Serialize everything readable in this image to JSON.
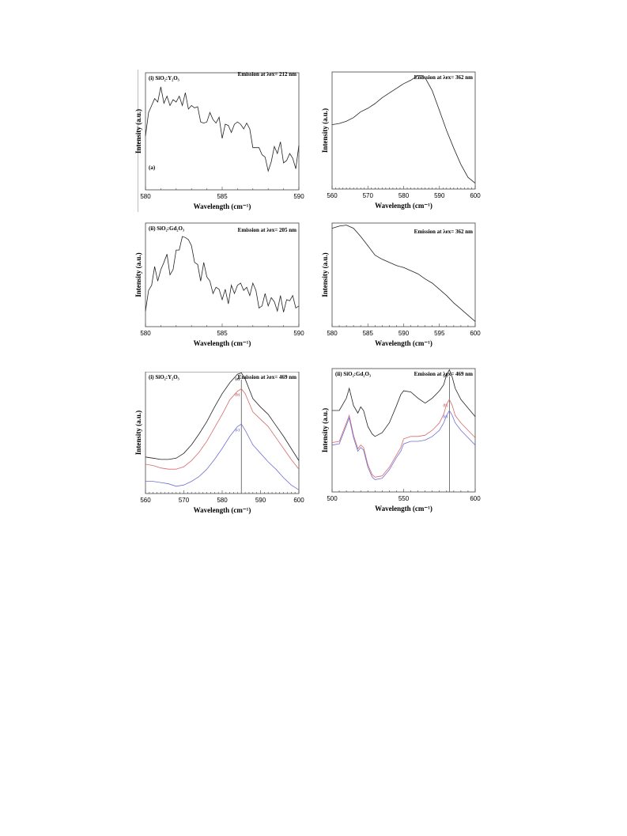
{
  "colors": {
    "black": "#222222",
    "red": "#d46a6a",
    "blue": "#6f6fd6",
    "marker": "#555555"
  },
  "chart_data": [
    {
      "type": "line",
      "panel_label": "(i) SiO₂:Y₂O₃",
      "emission_label": "Emission at λex= 212 nm",
      "corner_label": "(a)",
      "xlabel": "Wavelength (cm⁻¹)",
      "ylabel": "Intensity (a.u.)",
      "xlim": [
        580,
        590
      ],
      "ylim": [
        0,
        1
      ],
      "xticks": [
        580,
        585,
        590
      ],
      "grid": false,
      "series": [
        {
          "color": "black",
          "x": [
            580,
            580.2,
            580.4,
            580.6,
            580.8,
            581.0,
            581.2,
            581.4,
            581.6,
            581.8,
            582.0,
            582.2,
            582.4,
            582.6,
            582.8,
            583.0,
            583.2,
            583.4,
            583.6,
            583.8,
            584.0,
            584.2,
            584.4,
            584.6,
            584.8,
            585.0,
            585.2,
            585.4,
            585.6,
            585.8,
            586.0,
            586.2,
            586.4,
            586.6,
            586.8,
            587.0,
            587.2,
            587.4,
            587.6,
            587.8,
            588.0,
            588.2,
            588.4,
            588.6,
            588.8,
            589.0,
            589.2,
            589.4,
            589.6,
            589.8,
            590.0
          ],
          "y": [
            0.46,
            0.66,
            0.72,
            0.78,
            0.75,
            0.88,
            0.74,
            0.8,
            0.72,
            0.77,
            0.75,
            0.8,
            0.72,
            0.83,
            0.69,
            0.72,
            0.7,
            0.71,
            0.58,
            0.57,
            0.58,
            0.66,
            0.6,
            0.57,
            0.62,
            0.44,
            0.56,
            0.55,
            0.49,
            0.56,
            0.58,
            0.56,
            0.52,
            0.57,
            0.52,
            0.36,
            0.36,
            0.36,
            0.3,
            0.28,
            0.16,
            0.24,
            0.37,
            0.31,
            0.41,
            0.23,
            0.25,
            0.31,
            0.27,
            0.18,
            0.38
          ]
        }
      ]
    },
    {
      "type": "line",
      "emission_label": "Emission at λex= 362 nm",
      "xlabel": "Wavelength (cm⁻¹)",
      "ylabel": "Intensity (a.u.)",
      "xlim": [
        560,
        600
      ],
      "ylim": [
        0,
        1
      ],
      "xticks": [
        560,
        570,
        580,
        590,
        600
      ],
      "grid": false,
      "series": [
        {
          "color": "black",
          "x": [
            560,
            562,
            564,
            566,
            568,
            570,
            572,
            574,
            576,
            578,
            580,
            582,
            584,
            585,
            586,
            588,
            590,
            592,
            594,
            596,
            598,
            600
          ],
          "y": [
            0.55,
            0.56,
            0.58,
            0.61,
            0.66,
            0.69,
            0.73,
            0.78,
            0.82,
            0.86,
            0.9,
            0.93,
            0.97,
            0.97,
            0.95,
            0.84,
            0.67,
            0.5,
            0.35,
            0.21,
            0.1,
            0.05
          ]
        }
      ]
    },
    {
      "type": "line",
      "panel_label": "(ii) SiO₂:Gd₂O₃",
      "emission_label": "Emission at λex= 205 nm",
      "xlabel": "Wavelength (cm⁻¹)",
      "ylabel": "Intensity (a.u.)",
      "xlim": [
        580,
        590
      ],
      "ylim": [
        0,
        1
      ],
      "xticks": [
        580,
        585,
        590
      ],
      "grid": false,
      "series": [
        {
          "color": "black",
          "x": [
            580,
            580.2,
            580.4,
            580.6,
            580.8,
            581.0,
            581.2,
            581.4,
            581.6,
            581.8,
            582.0,
            582.2,
            582.4,
            582.6,
            582.8,
            583.0,
            583.2,
            583.4,
            583.6,
            583.8,
            584.0,
            584.2,
            584.4,
            584.6,
            584.8,
            585.0,
            585.2,
            585.4,
            585.6,
            585.8,
            586.0,
            586.2,
            586.4,
            586.6,
            586.8,
            587.0,
            587.2,
            587.4,
            587.6,
            587.8,
            588.0,
            588.2,
            588.4,
            588.6,
            588.8,
            589.0,
            589.2,
            589.4,
            589.6,
            589.8,
            590.0
          ],
          "y": [
            0.15,
            0.35,
            0.4,
            0.58,
            0.44,
            0.55,
            0.62,
            0.7,
            0.5,
            0.55,
            0.74,
            0.74,
            0.87,
            0.86,
            0.84,
            0.78,
            0.62,
            0.6,
            0.44,
            0.62,
            0.48,
            0.44,
            0.32,
            0.38,
            0.36,
            0.26,
            0.36,
            0.22,
            0.4,
            0.32,
            0.4,
            0.42,
            0.35,
            0.38,
            0.3,
            0.42,
            0.35,
            0.18,
            0.2,
            0.32,
            0.2,
            0.28,
            0.24,
            0.15,
            0.3,
            0.14,
            0.26,
            0.25,
            0.3,
            0.18,
            0.2
          ]
        }
      ]
    },
    {
      "type": "line",
      "emission_label": "Emission at λex= 362 nm",
      "xlabel": "Wavelength (cm⁻¹)",
      "ylabel": "Intensity (a.u.)",
      "xlim": [
        580,
        600
      ],
      "ylim": [
        0,
        1
      ],
      "xticks": [
        580,
        585,
        590,
        595,
        600
      ],
      "grid": false,
      "series": [
        {
          "color": "black",
          "x": [
            580,
            581,
            582,
            583,
            584,
            585,
            586,
            587,
            588,
            589,
            590,
            591,
            592,
            593,
            594,
            595,
            596,
            597,
            598,
            599,
            600
          ],
          "y": [
            0.95,
            0.97,
            0.98,
            0.95,
            0.87,
            0.78,
            0.69,
            0.65,
            0.62,
            0.59,
            0.57,
            0.54,
            0.51,
            0.46,
            0.42,
            0.36,
            0.3,
            0.23,
            0.17,
            0.11,
            0.05
          ]
        }
      ]
    },
    {
      "type": "line",
      "panel_label": "(i) SiO₂:Y₂O₃",
      "emission_label": "Emission at λex= 469 nm",
      "xlabel": "Wavelength (cm⁻¹)",
      "ylabel": "Intensity (a.u.)",
      "xlim": [
        560,
        600
      ],
      "ylim": [
        0,
        1
      ],
      "xticks": [
        560,
        570,
        580,
        590,
        600
      ],
      "vline": 585,
      "grid": false,
      "series": [
        {
          "name": "(a)",
          "color": "black",
          "x": [
            560,
            562,
            564,
            566,
            568,
            570,
            572,
            574,
            576,
            578,
            580,
            582,
            584,
            585,
            586,
            588,
            590,
            592,
            594,
            596,
            598,
            600
          ],
          "y": [
            0.3,
            0.29,
            0.28,
            0.28,
            0.29,
            0.33,
            0.4,
            0.49,
            0.59,
            0.71,
            0.82,
            0.91,
            0.98,
            0.99,
            0.94,
            0.78,
            0.71,
            0.65,
            0.56,
            0.47,
            0.37,
            0.27
          ]
        },
        {
          "name": "(b)",
          "color": "red",
          "x": [
            560,
            562,
            564,
            566,
            568,
            570,
            572,
            574,
            576,
            578,
            580,
            582,
            584,
            585,
            586,
            588,
            590,
            592,
            594,
            596,
            598,
            600
          ],
          "y": [
            0.24,
            0.23,
            0.21,
            0.2,
            0.2,
            0.22,
            0.27,
            0.34,
            0.43,
            0.54,
            0.65,
            0.77,
            0.84,
            0.86,
            0.82,
            0.67,
            0.61,
            0.55,
            0.46,
            0.37,
            0.28,
            0.2
          ]
        },
        {
          "name": "(c)",
          "color": "blue",
          "x": [
            560,
            562,
            564,
            566,
            568,
            570,
            572,
            574,
            576,
            578,
            580,
            582,
            584,
            585,
            586,
            588,
            590,
            592,
            594,
            596,
            598,
            600
          ],
          "y": [
            0.1,
            0.1,
            0.09,
            0.08,
            0.06,
            0.07,
            0.1,
            0.14,
            0.2,
            0.28,
            0.37,
            0.47,
            0.55,
            0.57,
            0.52,
            0.4,
            0.33,
            0.26,
            0.2,
            0.13,
            0.07,
            0.03
          ]
        }
      ]
    },
    {
      "type": "line",
      "panel_label": "(ii) SiO₂:Gd₂O₃",
      "emission_label": "Emission at λex= 469 nm",
      "xlabel": "Wavelength (cm⁻¹)",
      "ylabel": "Intensity (a.u.)",
      "xlim": [
        500,
        600
      ],
      "ylim": [
        0,
        1
      ],
      "xticks": [
        500,
        550,
        600
      ],
      "vline": 582,
      "grid": false,
      "series": [
        {
          "name": "(a)",
          "color": "black",
          "x": [
            500,
            505,
            510,
            512,
            515,
            518,
            520,
            522,
            525,
            528,
            530,
            535,
            540,
            545,
            548,
            550,
            555,
            560,
            565,
            570,
            575,
            578,
            580,
            582,
            584,
            586,
            590,
            595,
            600
          ],
          "y": [
            0.66,
            0.66,
            0.76,
            0.84,
            0.7,
            0.64,
            0.69,
            0.66,
            0.53,
            0.47,
            0.45,
            0.48,
            0.56,
            0.7,
            0.79,
            0.82,
            0.81,
            0.76,
            0.72,
            0.76,
            0.82,
            0.87,
            0.95,
            0.99,
            0.93,
            0.84,
            0.75,
            0.68,
            0.61
          ]
        },
        {
          "name": "(b)",
          "color": "red",
          "x": [
            500,
            505,
            510,
            512,
            515,
            518,
            520,
            522,
            525,
            528,
            530,
            535,
            540,
            545,
            548,
            550,
            555,
            560,
            565,
            570,
            575,
            578,
            580,
            582,
            584,
            586,
            590,
            595,
            600
          ],
          "y": [
            0.4,
            0.41,
            0.56,
            0.62,
            0.46,
            0.35,
            0.38,
            0.36,
            0.22,
            0.14,
            0.12,
            0.13,
            0.2,
            0.3,
            0.36,
            0.43,
            0.45,
            0.45,
            0.46,
            0.5,
            0.56,
            0.63,
            0.71,
            0.75,
            0.7,
            0.62,
            0.56,
            0.5,
            0.44
          ]
        },
        {
          "name": "(c)",
          "color": "blue",
          "x": [
            500,
            505,
            510,
            512,
            515,
            518,
            520,
            522,
            525,
            528,
            530,
            535,
            540,
            545,
            548,
            550,
            555,
            560,
            565,
            570,
            575,
            578,
            580,
            582,
            584,
            586,
            590,
            595,
            600
          ],
          "y": [
            0.38,
            0.39,
            0.54,
            0.6,
            0.44,
            0.33,
            0.36,
            0.34,
            0.2,
            0.12,
            0.1,
            0.11,
            0.18,
            0.28,
            0.33,
            0.39,
            0.41,
            0.41,
            0.42,
            0.45,
            0.5,
            0.56,
            0.62,
            0.66,
            0.62,
            0.56,
            0.5,
            0.44,
            0.38
          ]
        }
      ]
    }
  ]
}
